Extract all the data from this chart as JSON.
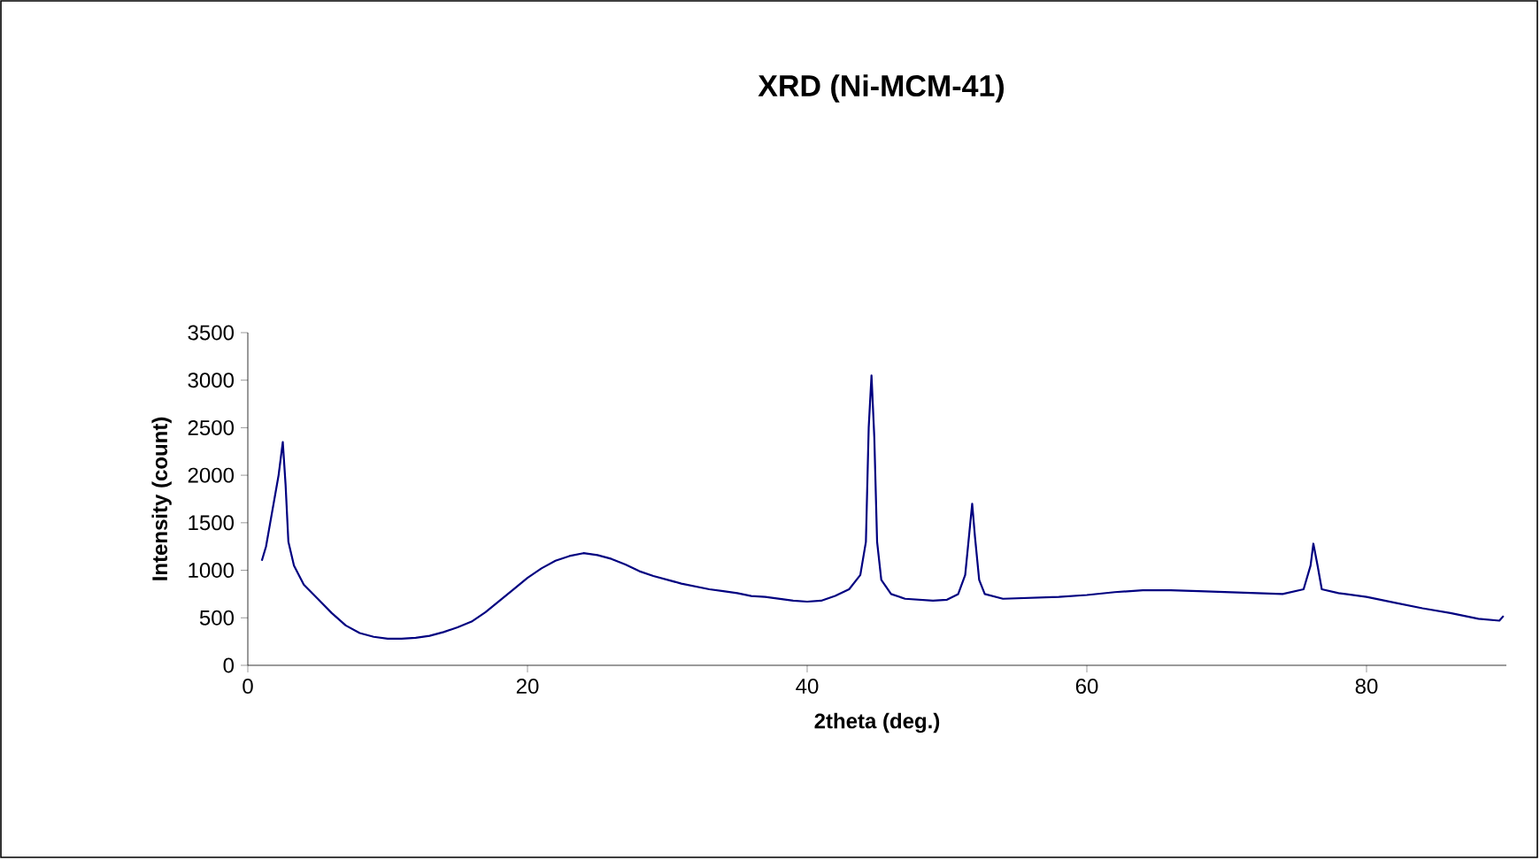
{
  "chart_data": {
    "type": "line",
    "title": "XRD (Ni-MCM-41)",
    "xlabel": "2theta (deg.)",
    "ylabel": "Intensity (count)",
    "xlim": [
      0,
      90
    ],
    "ylim": [
      0,
      3500
    ],
    "xticks": [
      0,
      20,
      40,
      60,
      80
    ],
    "yticks": [
      0,
      500,
      1000,
      1500,
      2000,
      2500,
      3000,
      3500
    ],
    "grid": false,
    "marker": "none",
    "line_style": "solid",
    "series": [
      {
        "color": "#000080",
        "x": [
          1.0,
          1.3,
          1.6,
          1.9,
          2.2,
          2.5,
          2.7,
          2.9,
          3.3,
          4,
          5,
          6,
          7,
          8,
          9,
          10,
          11,
          12,
          13,
          14,
          15,
          16,
          17,
          18,
          19,
          20,
          21,
          22,
          23,
          24,
          25,
          26,
          27,
          28,
          29,
          30,
          31,
          32,
          33,
          34,
          35,
          36,
          37,
          38,
          39,
          40,
          41,
          42,
          43,
          43.8,
          44.2,
          44.4,
          44.6,
          44.8,
          45,
          45.3,
          46,
          47,
          48,
          49,
          50,
          50.8,
          51.3,
          51.6,
          51.8,
          52,
          52.3,
          52.7,
          54,
          56,
          58,
          60,
          62,
          64,
          66,
          68,
          70,
          72,
          74,
          75.5,
          76,
          76.2,
          76.5,
          76.8,
          78,
          80,
          82,
          84,
          86,
          88,
          89.5,
          89.8
        ],
        "values": [
          1100,
          1250,
          1500,
          1750,
          2000,
          2350,
          1900,
          1300,
          1050,
          850,
          700,
          550,
          420,
          340,
          300,
          280,
          280,
          290,
          310,
          350,
          400,
          460,
          560,
          680,
          800,
          920,
          1020,
          1100,
          1150,
          1180,
          1160,
          1120,
          1060,
          990,
          940,
          900,
          860,
          830,
          800,
          780,
          760,
          730,
          720,
          700,
          680,
          670,
          680,
          730,
          800,
          950,
          1300,
          2500,
          3050,
          2400,
          1300,
          900,
          750,
          700,
          690,
          680,
          690,
          750,
          950,
          1400,
          1700,
          1350,
          900,
          750,
          700,
          710,
          720,
          740,
          770,
          790,
          790,
          780,
          770,
          760,
          750,
          800,
          1050,
          1280,
          1050,
          800,
          760,
          720,
          660,
          600,
          550,
          490,
          470,
          520
        ]
      }
    ]
  }
}
